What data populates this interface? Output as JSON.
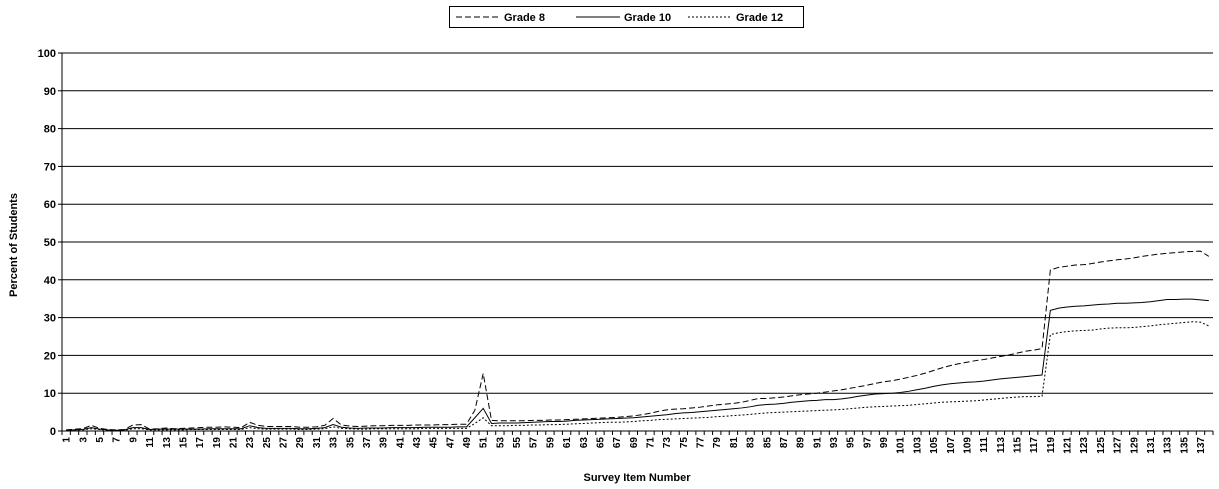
{
  "chart_data": {
    "type": "line",
    "title": "",
    "xlabel": "Survey Item Number",
    "ylabel": "Percent of Students",
    "ylim": [
      0,
      100
    ],
    "yticks": [
      0,
      10,
      20,
      30,
      40,
      50,
      60,
      70,
      80,
      90,
      100
    ],
    "xrange": [
      1,
      138
    ],
    "xtick_labels": [
      "1",
      "3",
      "5",
      "7",
      "9",
      "11",
      "13",
      "15",
      "17",
      "19",
      "21",
      "23",
      "25",
      "27",
      "29",
      "31",
      "33",
      "35",
      "37",
      "39",
      "41",
      "43",
      "45",
      "47",
      "49",
      "51",
      "53",
      "55",
      "57",
      "59",
      "61",
      "63",
      "65",
      "67",
      "69",
      "71",
      "73",
      "75",
      "77",
      "79",
      "81",
      "83",
      "85",
      "87",
      "89",
      "91",
      "93",
      "95",
      "97",
      "99",
      "101",
      "103",
      "105",
      "107",
      "109",
      "111",
      "113",
      "115",
      "117",
      "119",
      "121",
      "123",
      "125",
      "127",
      "129",
      "131",
      "133",
      "135",
      "137"
    ],
    "grid": "horizontal",
    "legend_position": "top-center",
    "series": [
      {
        "name": "Grade 8",
        "style": "dashed",
        "color": "#000000",
        "values": [
          0.3,
          0.5,
          0.6,
          1.5,
          0.7,
          0.4,
          0.3,
          0.4,
          1.6,
          1.7,
          0.5,
          0.6,
          0.8,
          0.6,
          0.7,
          0.8,
          0.9,
          1.0,
          1.0,
          1.1,
          1.0,
          0.9,
          2.3,
          1.5,
          1.2,
          1.2,
          1.2,
          1.2,
          1.0,
          1.0,
          1.1,
          1.5,
          3.3,
          1.6,
          1.3,
          1.2,
          1.3,
          1.4,
          1.4,
          1.5,
          1.5,
          1.5,
          1.6,
          1.6,
          1.6,
          1.7,
          1.7,
          1.8,
          1.8,
          5.5,
          15.2,
          2.8,
          2.7,
          2.7,
          2.7,
          2.7,
          2.8,
          2.8,
          2.9,
          2.9,
          3.0,
          3.1,
          3.2,
          3.3,
          3.4,
          3.5,
          3.6,
          3.8,
          4.0,
          4.3,
          4.7,
          5.2,
          5.6,
          5.8,
          5.9,
          6.1,
          6.3,
          6.6,
          6.9,
          7.1,
          7.3,
          7.6,
          8.1,
          8.6,
          8.6,
          8.8,
          9.0,
          9.3,
          9.6,
          9.8,
          10.0,
          10.3,
          10.6,
          10.9,
          11.3,
          11.7,
          12.1,
          12.6,
          13.0,
          13.3,
          13.7,
          14.2,
          14.7,
          15.3,
          16.0,
          16.7,
          17.3,
          17.8,
          18.2,
          18.6,
          18.9,
          19.3,
          19.7,
          20.1,
          20.6,
          21.1,
          21.4,
          21.8,
          42.6,
          43.3,
          43.6,
          43.9,
          44.0,
          44.3,
          44.7,
          45.0,
          45.3,
          45.5,
          45.8,
          46.2,
          46.5,
          46.8,
          47.0,
          47.2,
          47.4,
          47.5,
          47.6,
          46.2
        ]
      },
      {
        "name": "Grade 10",
        "style": "solid",
        "color": "#000000",
        "values": [
          0.2,
          0.3,
          0.4,
          0.9,
          0.5,
          0.3,
          0.2,
          0.3,
          0.9,
          0.9,
          0.4,
          0.5,
          0.5,
          0.5,
          0.5,
          0.5,
          0.5,
          0.6,
          0.6,
          0.6,
          0.6,
          0.6,
          1.4,
          0.9,
          0.7,
          0.7,
          0.7,
          0.7,
          0.6,
          0.6,
          0.7,
          0.9,
          1.7,
          1.0,
          0.8,
          0.7,
          0.8,
          0.8,
          0.8,
          0.9,
          0.9,
          0.9,
          0.9,
          1.0,
          1.0,
          1.0,
          1.0,
          1.1,
          1.1,
          3.5,
          6.0,
          2.0,
          2.1,
          2.1,
          2.1,
          2.2,
          2.3,
          2.4,
          2.5,
          2.5,
          2.6,
          2.8,
          2.9,
          3.0,
          3.1,
          3.2,
          3.3,
          3.4,
          3.5,
          3.7,
          3.9,
          4.1,
          4.3,
          4.6,
          4.8,
          4.9,
          5.1,
          5.3,
          5.5,
          5.7,
          5.9,
          6.1,
          6.4,
          6.8,
          7.0,
          7.1,
          7.3,
          7.6,
          7.8,
          8.0,
          8.1,
          8.3,
          8.3,
          8.5,
          8.8,
          9.2,
          9.5,
          9.8,
          9.9,
          10.0,
          10.2,
          10.5,
          10.9,
          11.3,
          11.8,
          12.2,
          12.5,
          12.7,
          12.9,
          13.0,
          13.2,
          13.5,
          13.8,
          14.0,
          14.2,
          14.4,
          14.6,
          14.8,
          31.9,
          32.5,
          32.8,
          33.0,
          33.1,
          33.3,
          33.5,
          33.6,
          33.8,
          33.8,
          33.9,
          34.0,
          34.2,
          34.5,
          34.8,
          34.8,
          34.9,
          34.9,
          34.7,
          34.5
        ]
      },
      {
        "name": "Grade 12",
        "style": "dotted",
        "color": "#000000",
        "values": [
          0.2,
          0.3,
          0.3,
          0.6,
          0.4,
          0.2,
          0.2,
          0.2,
          0.6,
          0.6,
          0.3,
          0.3,
          0.3,
          0.3,
          0.3,
          0.4,
          0.4,
          0.4,
          0.4,
          0.4,
          0.4,
          0.4,
          0.9,
          0.6,
          0.5,
          0.5,
          0.5,
          0.5,
          0.4,
          0.4,
          0.5,
          0.6,
          1.1,
          0.7,
          0.6,
          0.5,
          0.5,
          0.6,
          0.6,
          0.6,
          0.6,
          0.6,
          0.6,
          0.7,
          0.7,
          0.7,
          0.7,
          0.7,
          0.7,
          2.0,
          3.5,
          1.4,
          1.4,
          1.4,
          1.5,
          1.5,
          1.6,
          1.6,
          1.7,
          1.7,
          1.8,
          1.9,
          2.0,
          2.1,
          2.2,
          2.3,
          2.3,
          2.4,
          2.5,
          2.7,
          2.8,
          3.0,
          3.1,
          3.2,
          3.3,
          3.4,
          3.5,
          3.6,
          3.8,
          3.9,
          4.1,
          4.2,
          4.4,
          4.6,
          4.8,
          4.9,
          5.0,
          5.1,
          5.2,
          5.3,
          5.4,
          5.5,
          5.6,
          5.7,
          5.9,
          6.1,
          6.3,
          6.4,
          6.5,
          6.6,
          6.7,
          6.8,
          7.0,
          7.2,
          7.4,
          7.6,
          7.7,
          7.8,
          7.9,
          8.0,
          8.2,
          8.4,
          8.6,
          8.8,
          9.0,
          9.1,
          9.1,
          9.2,
          25.5,
          26.0,
          26.3,
          26.5,
          26.6,
          26.7,
          27.0,
          27.2,
          27.3,
          27.3,
          27.4,
          27.6,
          27.8,
          28.1,
          28.3,
          28.5,
          28.7,
          28.9,
          28.8,
          27.8
        ]
      }
    ]
  }
}
